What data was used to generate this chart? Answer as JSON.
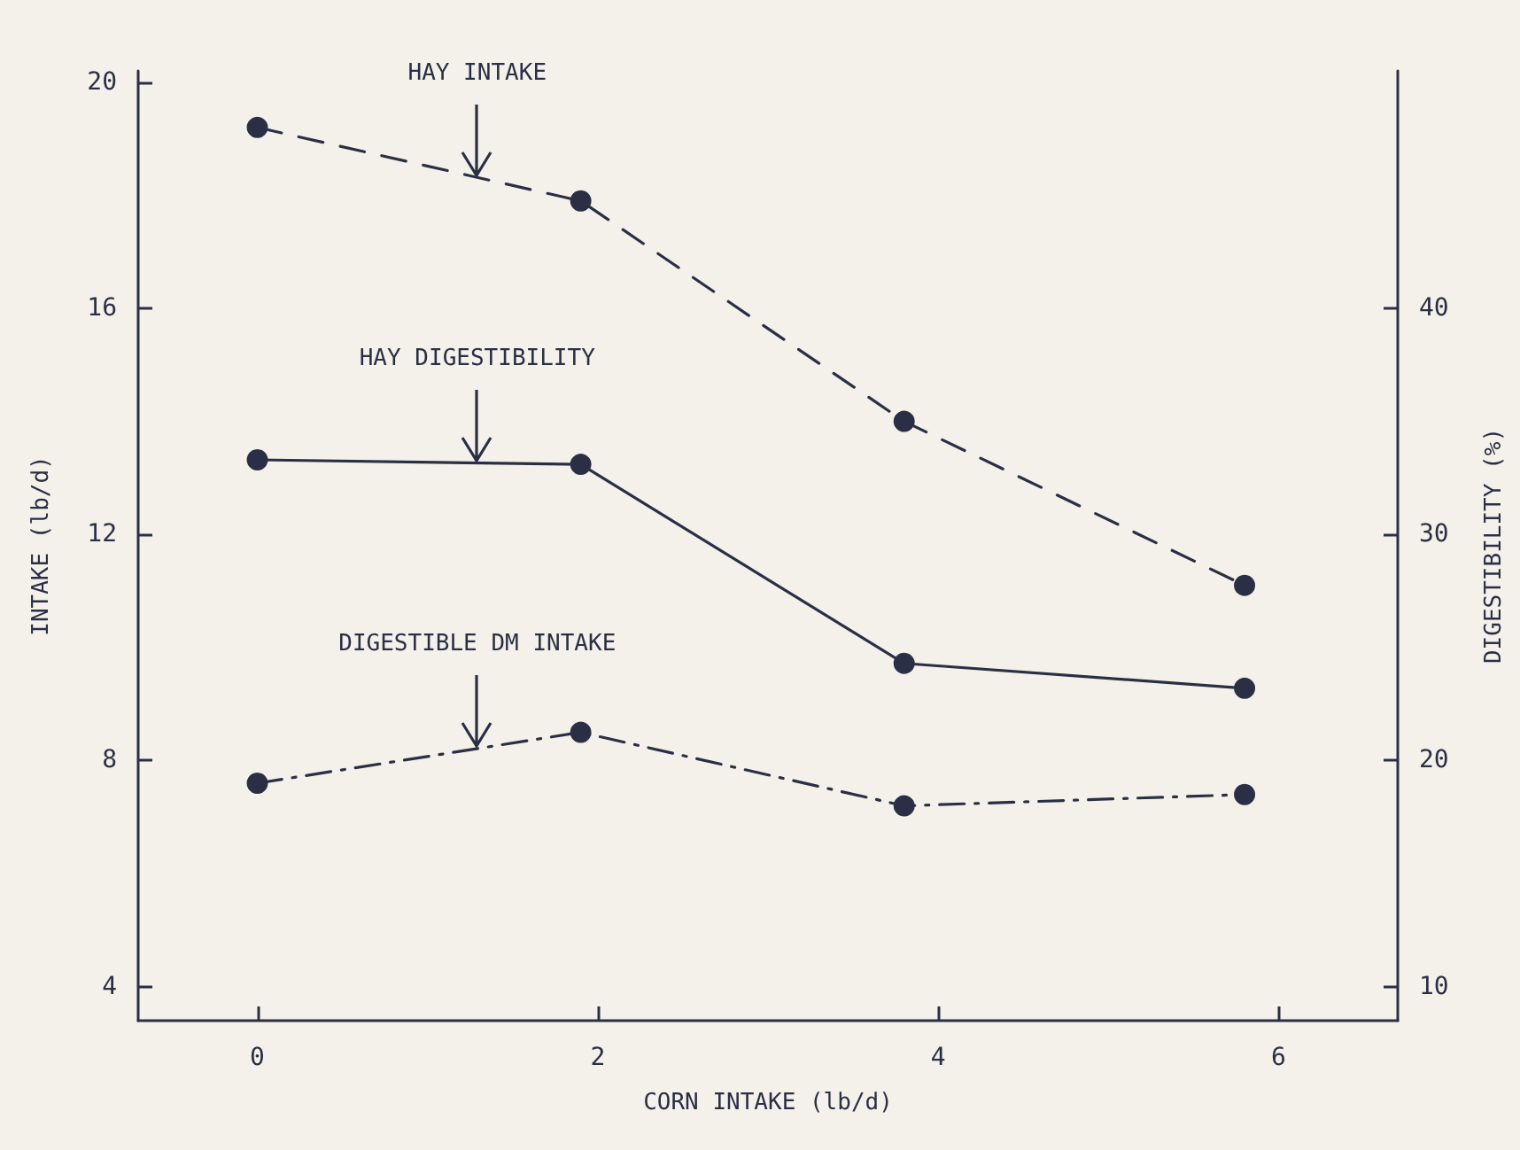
{
  "chart_data": {
    "type": "line",
    "xlabel": "CORN INTAKE (lb/d)",
    "ylabel": "INTAKE (lb/d)",
    "y2label": "DIGESTIBILITY (%)",
    "x": [
      0,
      1.9,
      3.8,
      5.8
    ],
    "xlim": [
      -0.7,
      6.7
    ],
    "xticks": [
      0,
      2,
      4,
      6
    ],
    "ylim": [
      3.4,
      20.2
    ],
    "yticks": [
      4,
      8,
      12,
      16,
      20
    ],
    "y2lim": [
      8.5,
      50.5
    ],
    "y2ticks": [
      10,
      20,
      30,
      40
    ],
    "marker": "circle",
    "grid": false,
    "legend": false,
    "series": [
      {
        "name": "HAY INTAKE",
        "color": "#2b2f45",
        "values": [
          19.2,
          17.9,
          14.0,
          11.1
        ],
        "line_style": "dashed"
      },
      {
        "name": "HAY DIGESTIBILITY",
        "color": "#2b2f45",
        "values": [
          33.3,
          33.1,
          24.3,
          23.2
        ],
        "line_style": "solid",
        "axis": "y2"
      },
      {
        "name": "DIGESTIBLE DM INTAKE",
        "color": "#2b2f45",
        "values": [
          7.6,
          8.5,
          7.2,
          7.4
        ],
        "line_style": "dashdot"
      }
    ]
  }
}
